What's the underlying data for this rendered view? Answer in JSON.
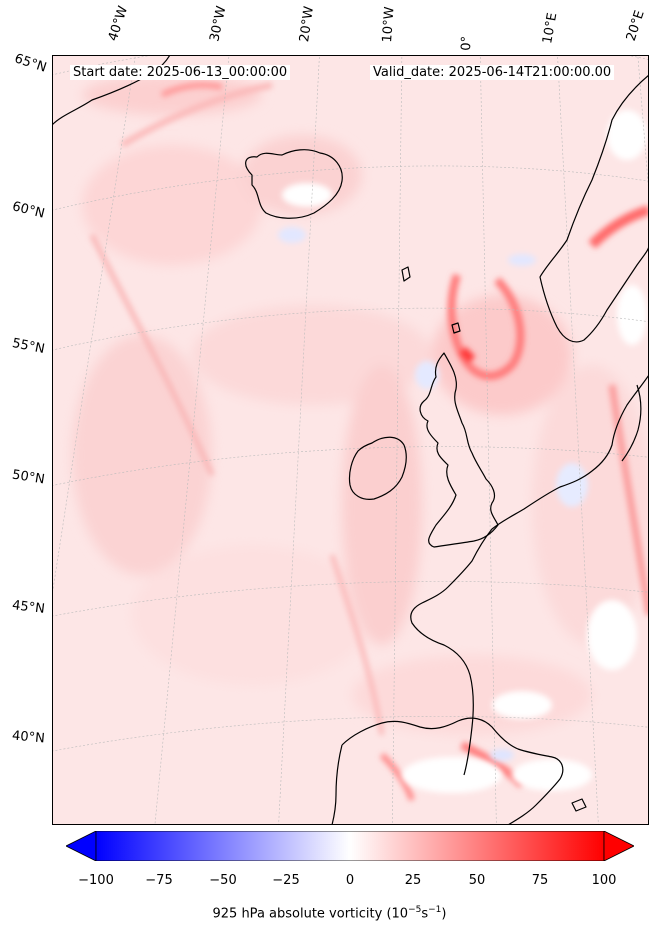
{
  "map": {
    "start_date_text": "Start date: 2025-06-13_00:00:00",
    "valid_date_text": "Valid_date: 2025-06-14T21:00:00.00",
    "longitude_labels": [
      "40°W",
      "30°W",
      "20°W",
      "10°W",
      "0°",
      "10°E",
      "20°E"
    ],
    "latitude_labels": [
      "65°N",
      "60°N",
      "55°N",
      "50°N",
      "45°N",
      "40°N"
    ],
    "coastline_color": "#000000",
    "field_base_color": "#fde2e2",
    "field_strong_color": "#ff3a3a",
    "field_negative_color": "#dfe6ff"
  },
  "colorbar": {
    "ticks": [
      "−100",
      "−75",
      "−50",
      "−25",
      "0",
      "25",
      "50",
      "75",
      "100"
    ],
    "min": -100,
    "max": 100,
    "low_color": "#0000ff",
    "mid_color": "#ffffff",
    "high_color": "#ff0000",
    "label_main": "925 hPa absolute vorticity (10",
    "label_exp1": "−5",
    "label_mid": "s",
    "label_exp2": "−1",
    "label_end": ")"
  }
}
